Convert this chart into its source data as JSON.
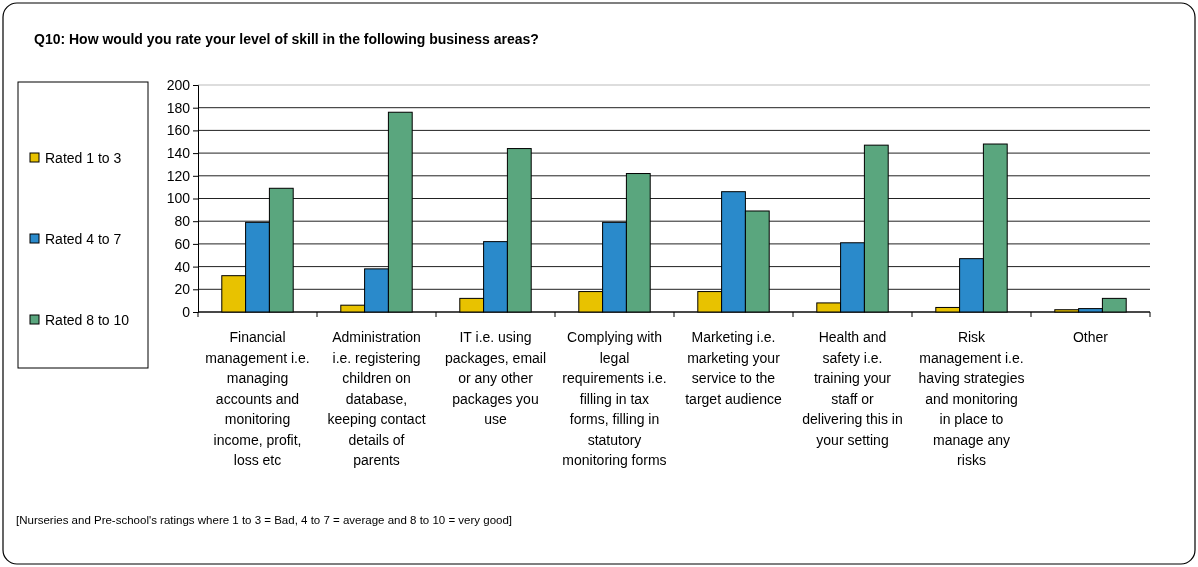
{
  "chart_data": {
    "type": "bar",
    "title": "Q10: How would you rate your level of skill in the following business areas?",
    "categories": [
      "Financial management i.e. managing accounts and monitoring income, profit, loss etc",
      "Administration i.e. registering children on database, keeping contact details of parents",
      "IT i.e. using packages, email or any other packages you use",
      "Complying with legal requirements i.e. filling in tax forms, filling in statutory monitoring forms",
      "Marketing i.e. marketing your service to the target audience",
      "Health and safety i.e. training your staff or delivering this in your setting",
      "Risk management i.e. having strategies and monitoring in place to manage any risks",
      "Other"
    ],
    "series": [
      {
        "name": "Rated 1 to 3",
        "color": "#e8c200",
        "values": [
          32,
          6,
          12,
          18,
          18,
          8,
          4,
          2
        ]
      },
      {
        "name": "Rated 4 to 7",
        "color": "#2a8acb",
        "values": [
          79,
          38,
          62,
          79,
          106,
          61,
          47,
          3
        ]
      },
      {
        "name": "Rated 8 to 10",
        "color": "#5aa67e",
        "values": [
          109,
          176,
          144,
          122,
          89,
          147,
          148,
          12
        ]
      }
    ],
    "ylim": [
      0,
      200
    ],
    "yticks": [
      0,
      20,
      40,
      60,
      80,
      100,
      120,
      140,
      160,
      180,
      200
    ],
    "grid": "y",
    "legend": "left",
    "annotations": [
      "[Nurseries and Pre-school's ratings where 1 to 3 = Bad, 4 to 7 = average and 8 to 10 = very good]"
    ]
  }
}
